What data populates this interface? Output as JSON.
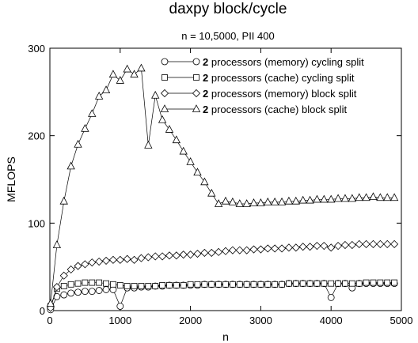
{
  "chart_data": {
    "type": "line",
    "title": "daxpy block/cycle",
    "subtitle": "n = 10,5000, PII 400",
    "xlabel": "n",
    "ylabel": "MFLOPS",
    "xlim": [
      0,
      5000
    ],
    "ylim": [
      0,
      300
    ],
    "xticks": [
      "0",
      "1000",
      "2000",
      "3000",
      "4000",
      "5000"
    ],
    "yticks": [
      "0",
      "100",
      "200",
      "300"
    ],
    "grid": false,
    "legend_position": "top-right",
    "x": [
      10,
      100,
      200,
      300,
      400,
      500,
      600,
      700,
      800,
      900,
      1000,
      1100,
      1200,
      1300,
      1400,
      1500,
      1600,
      1700,
      1800,
      1900,
      2000,
      2100,
      2200,
      2300,
      2400,
      2500,
      2600,
      2700,
      2800,
      2900,
      3000,
      3100,
      3200,
      3300,
      3400,
      3500,
      3600,
      3700,
      3800,
      3900,
      4000,
      4100,
      4200,
      4300,
      4400,
      4500,
      4600,
      4700,
      4800,
      4900
    ],
    "series": [
      {
        "name_number": "2",
        "name_text": "processors (memory) cycling split",
        "marker": "circle",
        "values": [
          1,
          16,
          18,
          20,
          21,
          22,
          22,
          23,
          24,
          24,
          5,
          26,
          26,
          27,
          27,
          28,
          28,
          29,
          29,
          29,
          29,
          29,
          30,
          30,
          30,
          30,
          30,
          30,
          30,
          30,
          30,
          30,
          30,
          30,
          31,
          31,
          31,
          31,
          31,
          31,
          15,
          31,
          31,
          26,
          31,
          31,
          31,
          31,
          31,
          31
        ]
      },
      {
        "name_number": "2",
        "name_text": "processors (cache) cycling split",
        "marker": "square",
        "values": [
          5,
          25,
          28,
          30,
          31,
          32,
          32,
          32,
          31,
          30,
          29,
          28,
          28,
          28,
          28,
          28,
          29,
          29,
          29,
          29,
          30,
          30,
          30,
          30,
          30,
          30,
          30,
          30,
          30,
          30,
          30,
          30,
          30,
          30,
          31,
          31,
          31,
          31,
          31,
          31,
          31,
          31,
          31,
          31,
          31,
          32,
          32,
          32,
          32,
          32
        ]
      },
      {
        "name_number": "2",
        "name_text": "processors (memory) block split",
        "marker": "diamond",
        "values": [
          3,
          27,
          40,
          47,
          51,
          53,
          55,
          56,
          57,
          58,
          58,
          59,
          58,
          60,
          61,
          62,
          62,
          63,
          63,
          64,
          64,
          65,
          66,
          66,
          67,
          68,
          69,
          69,
          69,
          70,
          70,
          71,
          71,
          71,
          72,
          72,
          73,
          73,
          74,
          74,
          72,
          74,
          75,
          75,
          76,
          76,
          76,
          76,
          76,
          76
        ]
      },
      {
        "name_number": "2",
        "name_text": "processors (cache) block split",
        "marker": "triangle",
        "values": [
          8,
          75,
          125,
          165,
          190,
          208,
          225,
          245,
          252,
          270,
          263,
          276,
          270,
          277,
          189,
          246,
          218,
          207,
          195,
          182,
          170,
          158,
          147,
          134,
          122,
          125,
          124,
          122,
          122,
          123,
          123,
          124,
          124,
          124,
          125,
          125,
          126,
          126,
          127,
          127,
          127,
          128,
          128,
          128,
          129,
          129,
          130,
          129,
          129,
          129
        ]
      }
    ]
  }
}
